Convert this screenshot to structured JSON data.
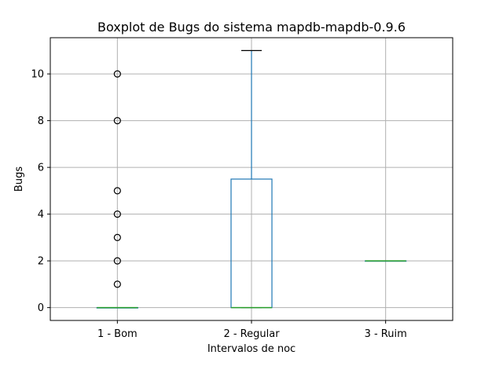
{
  "chart_data": {
    "type": "box",
    "title": "Boxplot de Bugs do sistema mapdb-mapdb-0.9.6",
    "xlabel": "Intervalos de noc",
    "ylabel": "Bugs",
    "ylim": [
      -0.55,
      11.55
    ],
    "yticks": [
      0,
      2,
      4,
      6,
      8,
      10
    ],
    "grid": true,
    "categories": [
      "1 - Bom",
      "2 - Regular",
      "3 - Ruim"
    ],
    "boxes": [
      {
        "category": "1 - Bom",
        "whisker_low": 0,
        "q1": 0,
        "median": 0,
        "q3": 0,
        "whisker_high": 0,
        "outliers": [
          1,
          2,
          3,
          4,
          5,
          8,
          10
        ]
      },
      {
        "category": "2 - Regular",
        "whisker_low": 0,
        "q1": 0,
        "median": 0,
        "q3": 5.5,
        "whisker_high": 11,
        "outliers": []
      },
      {
        "category": "3 - Ruim",
        "whisker_low": 2,
        "q1": 2,
        "median": 2,
        "q3": 2,
        "whisker_high": 2,
        "outliers": []
      }
    ],
    "colors": {
      "box": "#1f77b4",
      "median": "#2ca02c",
      "grid": "#b0b0b0",
      "flier": "#000000"
    }
  }
}
